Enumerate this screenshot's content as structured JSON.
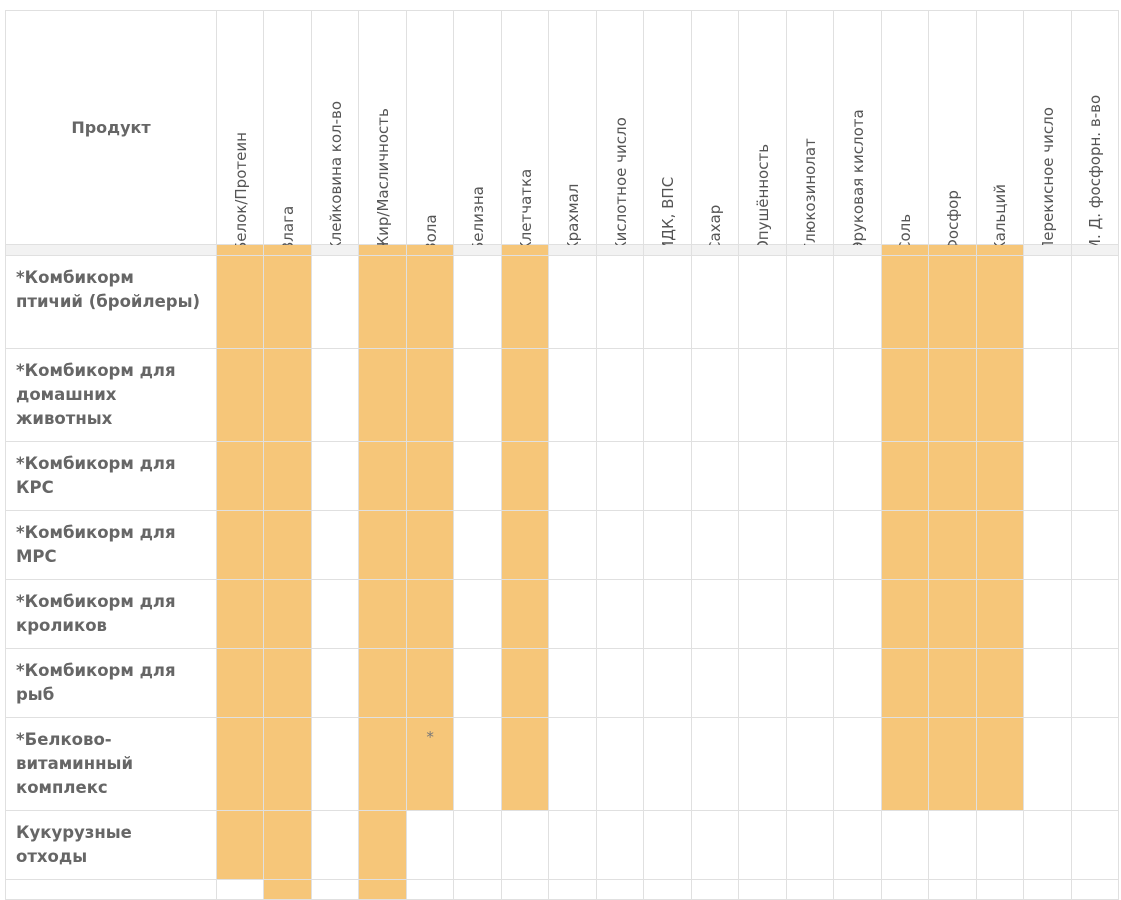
{
  "table": {
    "product_header": "Продукт",
    "columns": [
      "Белок/Протеин",
      "Влага",
      "Клейковина кол-во",
      "Жир/Масличность",
      "Зола",
      "Белизна",
      "Клетчатка",
      "Крахмал",
      "Кислотное число",
      "ИДК, ВПС",
      "Сахар",
      "Опушённость",
      "Глюкозинолат",
      "Эруковая кислота",
      "Соль",
      "Фосфор",
      "Кальций",
      "Перекисное число",
      "М. Д. фосфорн. в-во"
    ],
    "rows": [
      {
        "product": "*Комбикорм птичий (бройлеры)",
        "marked": [
          0,
          1,
          3,
          4,
          6,
          14,
          15,
          16
        ]
      },
      {
        "product": "*Комбикорм для домашних животных",
        "marked": [
          0,
          1,
          3,
          4,
          6,
          14,
          15,
          16
        ]
      },
      {
        "product": "*Комбикорм для КРС",
        "marked": [
          0,
          1,
          3,
          4,
          6,
          14,
          15,
          16
        ]
      },
      {
        "product": "*Комбикорм для МРС",
        "marked": [
          0,
          1,
          3,
          4,
          6,
          14,
          15,
          16
        ]
      },
      {
        "product": "*Комбикорм для кроликов",
        "marked": [
          0,
          1,
          3,
          4,
          6,
          14,
          15,
          16
        ]
      },
      {
        "product": "*Комбикорм для рыб",
        "marked": [
          0,
          1,
          3,
          4,
          6,
          14,
          15,
          16
        ]
      },
      {
        "product": "*Белково-витаминный комплекс",
        "marked": [
          0,
          1,
          3,
          4,
          6,
          14,
          15,
          16
        ],
        "note": {
          "column": 4,
          "text": "*"
        }
      },
      {
        "product": "Кукурузные отходы",
        "marked": [
          0,
          1,
          3
        ]
      },
      {
        "marked": [
          1,
          3
        ]
      }
    ]
  }
}
